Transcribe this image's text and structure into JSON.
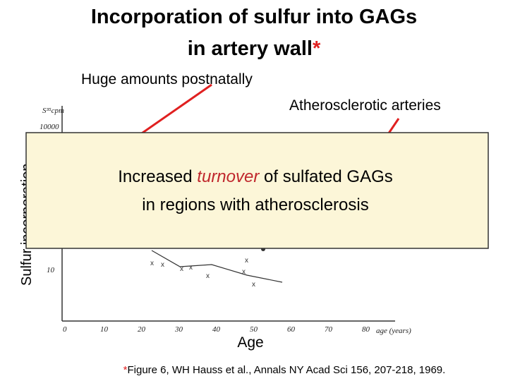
{
  "title": {
    "line1": "Incorporation of sulfur into GAGs",
    "line2": "in artery wall",
    "marker": "*"
  },
  "annotations": {
    "postnatal": "Huge amounts postnatally",
    "atherosclerotic": "Atherosclerotic arteries"
  },
  "figure": {
    "y_label": "Sulfur incorporation",
    "y_unit": "S³⁵cpm",
    "y_tick_top": "10000",
    "y_tick_low": "10",
    "x_ticks": [
      "0",
      "10",
      "20",
      "30",
      "40",
      "50",
      "60",
      "70",
      "80"
    ],
    "x_unit": "age (years)",
    "x_label": "Age"
  },
  "callout": {
    "before": "Increased ",
    "emphasis": "turnover",
    "after": " of sulfated GAGs",
    "line2": "in regions with atherosclerosis"
  },
  "footnote": {
    "marker": "*",
    "text": "Figure 6, WH Hauss et al., Annals NY Acad Sci 156, 207-218, 1969."
  }
}
